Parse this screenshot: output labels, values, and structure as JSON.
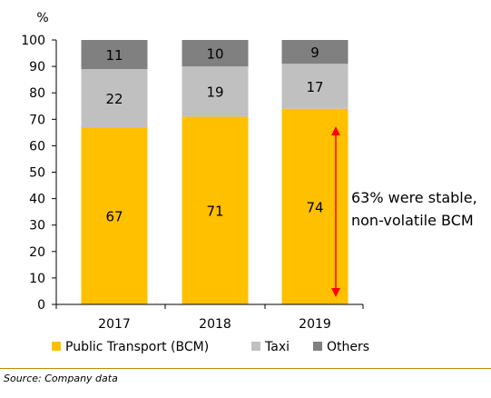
{
  "chart_data": {
    "type": "bar",
    "stacked": true,
    "y_unit": "%",
    "categories": [
      "2017",
      "2018",
      "2019"
    ],
    "series": [
      {
        "name": "Public Transport (BCM)",
        "color": "#ffc000",
        "values": [
          67,
          71,
          74
        ]
      },
      {
        "name": "Taxi",
        "color": "#c0c0c0",
        "values": [
          22,
          19,
          17
        ]
      },
      {
        "name": "Others",
        "color": "#808080",
        "values": [
          11,
          10,
          9
        ]
      }
    ],
    "ylim": [
      0,
      100
    ],
    "yticks": [
      0,
      10,
      20,
      30,
      40,
      50,
      60,
      70,
      80,
      90,
      100
    ],
    "grid": false,
    "legend_position": "bottom",
    "annotation": {
      "lines": [
        "63% were stable,",
        "non-volatile BCM"
      ],
      "arrow_color": "#ff0000"
    }
  },
  "source": "Source: Company data"
}
